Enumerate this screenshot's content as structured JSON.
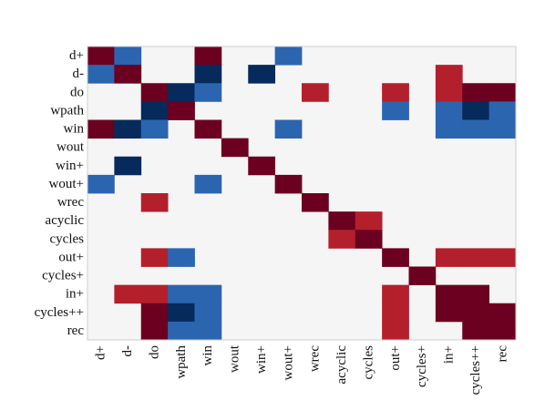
{
  "chart_data": {
    "type": "heatmap",
    "labels": [
      "d+",
      "d-",
      "do",
      "wpath",
      "win",
      "wout",
      "win+",
      "wout+",
      "wrec",
      "acyclic",
      "cycles",
      "out+",
      "cycles+",
      "in+",
      "cycles++",
      "rec"
    ],
    "value_range": [
      -1,
      1
    ],
    "matrix": [
      [
        1.0,
        -0.6,
        0,
        0,
        1.0,
        0,
        0,
        -0.6,
        0,
        0,
        0,
        0,
        0,
        0,
        0,
        0
      ],
      [
        -0.6,
        1.0,
        0,
        0,
        -1.0,
        0,
        -1.0,
        0,
        0,
        0,
        0,
        0,
        0,
        0.6,
        0,
        0
      ],
      [
        0,
        0,
        1.0,
        -1.0,
        -0.6,
        0,
        0,
        0,
        0.6,
        0,
        0,
        0.6,
        0,
        0.6,
        1.0,
        1.0
      ],
      [
        0,
        0,
        -1.0,
        1.0,
        0,
        0,
        0,
        0,
        0,
        0,
        0,
        -0.6,
        0,
        -0.6,
        -1.0,
        -0.6
      ],
      [
        1.0,
        -1.0,
        -0.6,
        0,
        1.0,
        0,
        0,
        -0.6,
        0,
        0,
        0,
        0,
        0,
        -0.6,
        -0.6,
        -0.6
      ],
      [
        0,
        0,
        0,
        0,
        0,
        1.0,
        0,
        0,
        0,
        0,
        0,
        0,
        0,
        0,
        0,
        0
      ],
      [
        0,
        -1.0,
        0,
        0,
        0,
        0,
        1.0,
        0,
        0,
        0,
        0,
        0,
        0,
        0,
        0,
        0
      ],
      [
        -0.6,
        0,
        0,
        0,
        -0.6,
        0,
        0,
        1.0,
        0,
        0,
        0,
        0,
        0,
        0,
        0,
        0
      ],
      [
        0,
        0,
        0.6,
        0,
        0,
        0,
        0,
        0,
        1.0,
        0,
        0,
        0,
        0,
        0,
        0,
        0
      ],
      [
        0,
        0,
        0,
        0,
        0,
        0,
        0,
        0,
        0,
        1.0,
        0.6,
        0,
        0,
        0,
        0,
        0
      ],
      [
        0,
        0,
        0,
        0,
        0,
        0,
        0,
        0,
        0,
        0.6,
        1.0,
        0,
        0,
        0,
        0,
        0
      ],
      [
        0,
        0,
        0.6,
        -0.6,
        0,
        0,
        0,
        0,
        0,
        0,
        0,
        1.0,
        0,
        0.6,
        0.6,
        0.6
      ],
      [
        0,
        0,
        0,
        0,
        0,
        0,
        0,
        0,
        0,
        0,
        0,
        0,
        1.0,
        0,
        0,
        0
      ],
      [
        0,
        0.6,
        0.6,
        -0.6,
        -0.6,
        0,
        0,
        0,
        0,
        0,
        0,
        0.6,
        0,
        1.0,
        1.0,
        0
      ],
      [
        0,
        0,
        1.0,
        -1.0,
        -0.6,
        0,
        0,
        0,
        0,
        0,
        0,
        0.6,
        0,
        1.0,
        1.0,
        1.0
      ],
      [
        0,
        0,
        1.0,
        -0.6,
        -0.6,
        0,
        0,
        0,
        0,
        0,
        0,
        0.6,
        0,
        0,
        1.0,
        1.0
      ]
    ],
    "colors": {
      "strong_positive": "#6b0020",
      "moderate_positive": "#b3202c",
      "neutral": "#f5f5f5",
      "moderate_negative": "#2b65b0",
      "strong_negative": "#072a5c",
      "frame": "#cfcfcf"
    },
    "grid": false,
    "legend": "none"
  }
}
